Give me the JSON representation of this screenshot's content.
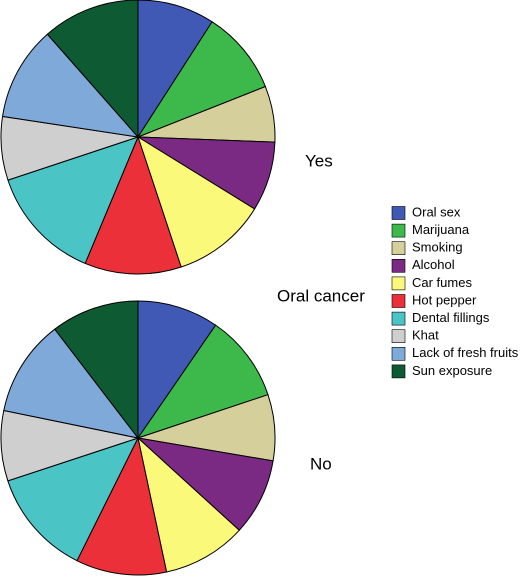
{
  "chart_data": {
    "type": "pie",
    "label": "Oral cancer",
    "categories": [
      "Oral sex",
      "Marijuana",
      "Smoking",
      "Alcohol",
      "Car fumes",
      "Hot pepper",
      "Dental fillings",
      "Khat",
      "Lack of fresh fruits",
      "Sun exposure"
    ],
    "colors": [
      "#3f59b5",
      "#3cb94a",
      "#d5cf9c",
      "#7b2a83",
      "#fbf97a",
      "#ec3039",
      "#4bc4c6",
      "#cfcfcf",
      "#7ea9d8",
      "#0e5a32"
    ],
    "series": [
      {
        "name": "Yes",
        "values": [
          9.1,
          9.9,
          6.6,
          8.2,
          11.1,
          11.4,
          13.6,
          7.5,
          11.1,
          11.5
        ]
      },
      {
        "name": "No",
        "values": [
          9.6,
          10.3,
          7.8,
          9.1,
          9.9,
          10.7,
          12.6,
          8.3,
          11.4,
          10.4
        ]
      }
    ],
    "legend": "right"
  }
}
